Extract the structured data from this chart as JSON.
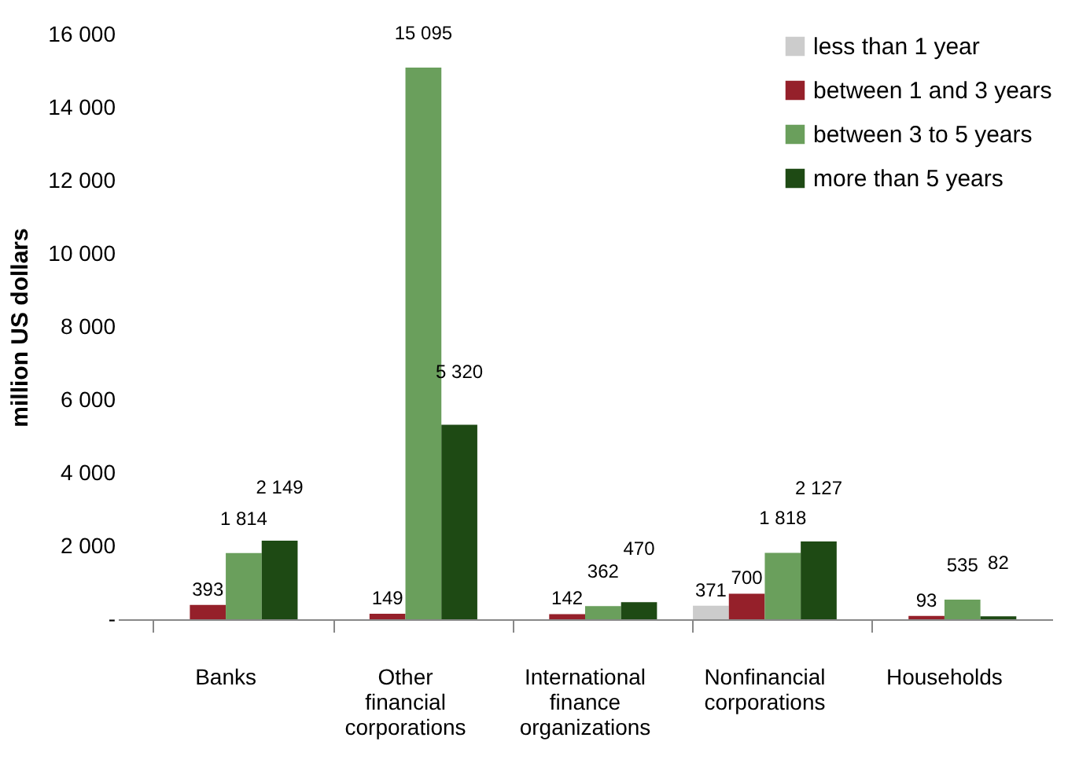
{
  "chart_data": {
    "type": "bar",
    "ylabel": "million US dollars",
    "categories": [
      "Banks",
      "Other financial corporations",
      "International finance organizations",
      "Nonfinancial corporations",
      "Households"
    ],
    "series": [
      {
        "name": "less than 1 year",
        "color": "#cccccc",
        "values": [
          null,
          null,
          null,
          371,
          null
        ],
        "value_labels": [
          null,
          null,
          null,
          "371",
          null
        ]
      },
      {
        "name": "between 1 and 3 years",
        "color": "#95202a",
        "values": [
          393,
          149,
          142,
          700,
          93
        ],
        "value_labels": [
          "393",
          "149",
          "142",
          "700",
          "93"
        ]
      },
      {
        "name": "between 3 to 5 years",
        "color": "#6a9f5c",
        "values": [
          1814,
          15095,
          362,
          1818,
          535
        ],
        "value_labels": [
          "1 814",
          "15 095",
          "362",
          "1 818",
          "535"
        ]
      },
      {
        "name": "more than 5 years",
        "color": "#1e4a14",
        "values": [
          2149,
          5320,
          470,
          2127,
          82
        ],
        "value_labels": [
          "2 149",
          "5 320",
          "470",
          "2 127",
          "82"
        ]
      }
    ],
    "ylim": [
      0,
      16000
    ],
    "yticks": [
      {
        "value": 0,
        "label": "-"
      },
      {
        "value": 2000,
        "label": "2 000"
      },
      {
        "value": 4000,
        "label": "4 000"
      },
      {
        "value": 6000,
        "label": "6 000"
      },
      {
        "value": 8000,
        "label": "8 000"
      },
      {
        "value": 10000,
        "label": "10 000"
      },
      {
        "value": 12000,
        "label": "12 000"
      },
      {
        "value": 14000,
        "label": "14 000"
      },
      {
        "value": 16000,
        "label": "16 000"
      }
    ],
    "grid": false,
    "legend": "top right"
  }
}
